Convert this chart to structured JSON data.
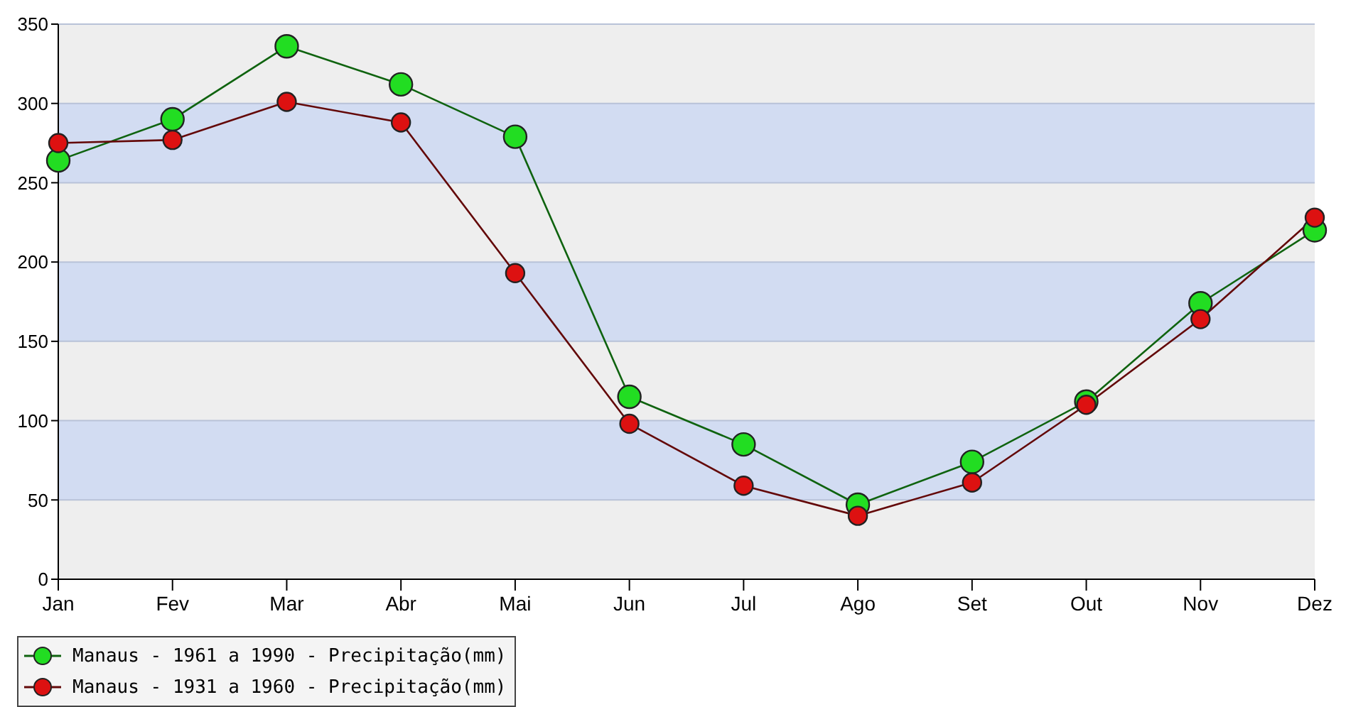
{
  "chart_data": {
    "type": "line",
    "categories": [
      "Jan",
      "Fev",
      "Mar",
      "Abr",
      "Mai",
      "Jun",
      "Jul",
      "Ago",
      "Set",
      "Out",
      "Nov",
      "Dez"
    ],
    "series": [
      {
        "name": "Manaus - 1961 a 1990 - Precipitação(mm)",
        "color": "#22dd22",
        "values": [
          264,
          290,
          336,
          312,
          279,
          115,
          85,
          47,
          74,
          112,
          174,
          220
        ]
      },
      {
        "name": "Manaus - 1931 a 1960 - Precipitação(mm)",
        "color": "#dd1111",
        "values": [
          275,
          277,
          301,
          288,
          193,
          98,
          59,
          40,
          61,
          110,
          164,
          228
        ]
      }
    ],
    "ylim": [
      0,
      350
    ],
    "yticks": [
      0,
      50,
      100,
      150,
      200,
      250,
      300,
      350
    ],
    "grid": "y",
    "legend": "bottom left",
    "marker": "circle",
    "line_style": "solid"
  }
}
